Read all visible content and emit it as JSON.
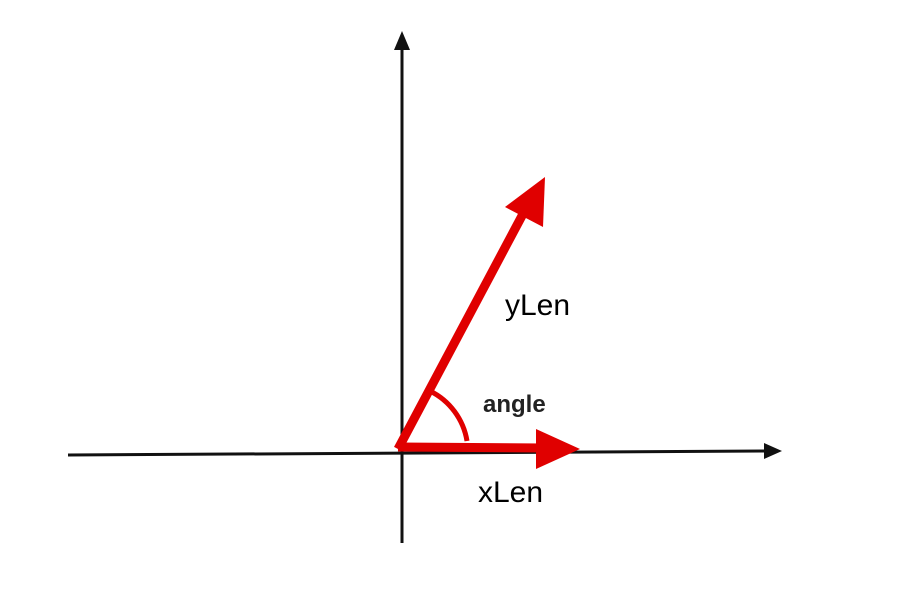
{
  "labels": {
    "y_vector": "yLen",
    "x_vector": "xLen",
    "angle": "angle"
  },
  "colors": {
    "axes": "#111111",
    "vectors": "#e00000",
    "background": "#ffffff"
  }
}
